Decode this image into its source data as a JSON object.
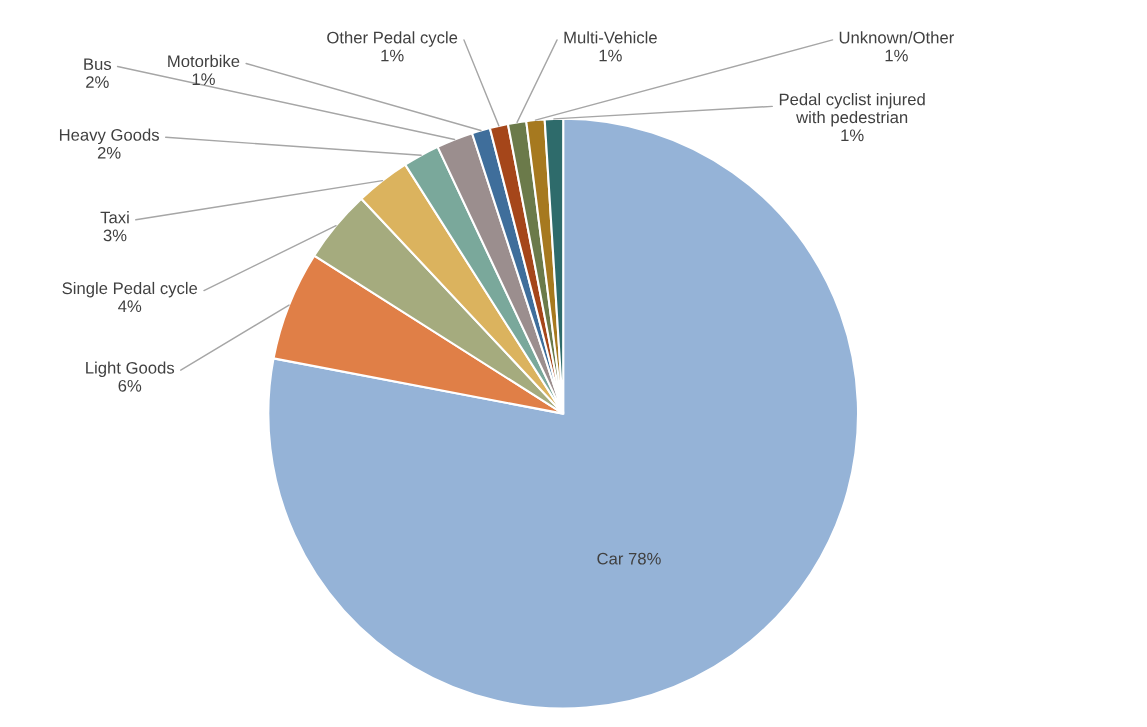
{
  "chart_data": {
    "type": "pie",
    "categories": [
      "Car",
      "Light Goods",
      "Single Pedal cycle",
      "Taxi",
      "Heavy Goods",
      "Bus",
      "Motorbike",
      "Other Pedal cycle",
      "Multi-Vehicle",
      "Unknown/Other",
      "Pedal cyclist injured\nwith pedestrian"
    ],
    "values": [
      78,
      6,
      4,
      3,
      2,
      2,
      1,
      1,
      1,
      1,
      1
    ],
    "value_labels": [
      "78%",
      "6%",
      "4%",
      "3%",
      "2%",
      "2%",
      "1%",
      "1%",
      "1%",
      "1%",
      "1%"
    ],
    "colors": [
      "#95b3d7",
      "#e07f47",
      "#a5ab7e",
      "#dbb35e",
      "#7aa89b",
      "#9b8e8e",
      "#3f6e9b",
      "#a5461a",
      "#6b7a4a",
      "#a6791f",
      "#2e6b6b"
    ]
  }
}
